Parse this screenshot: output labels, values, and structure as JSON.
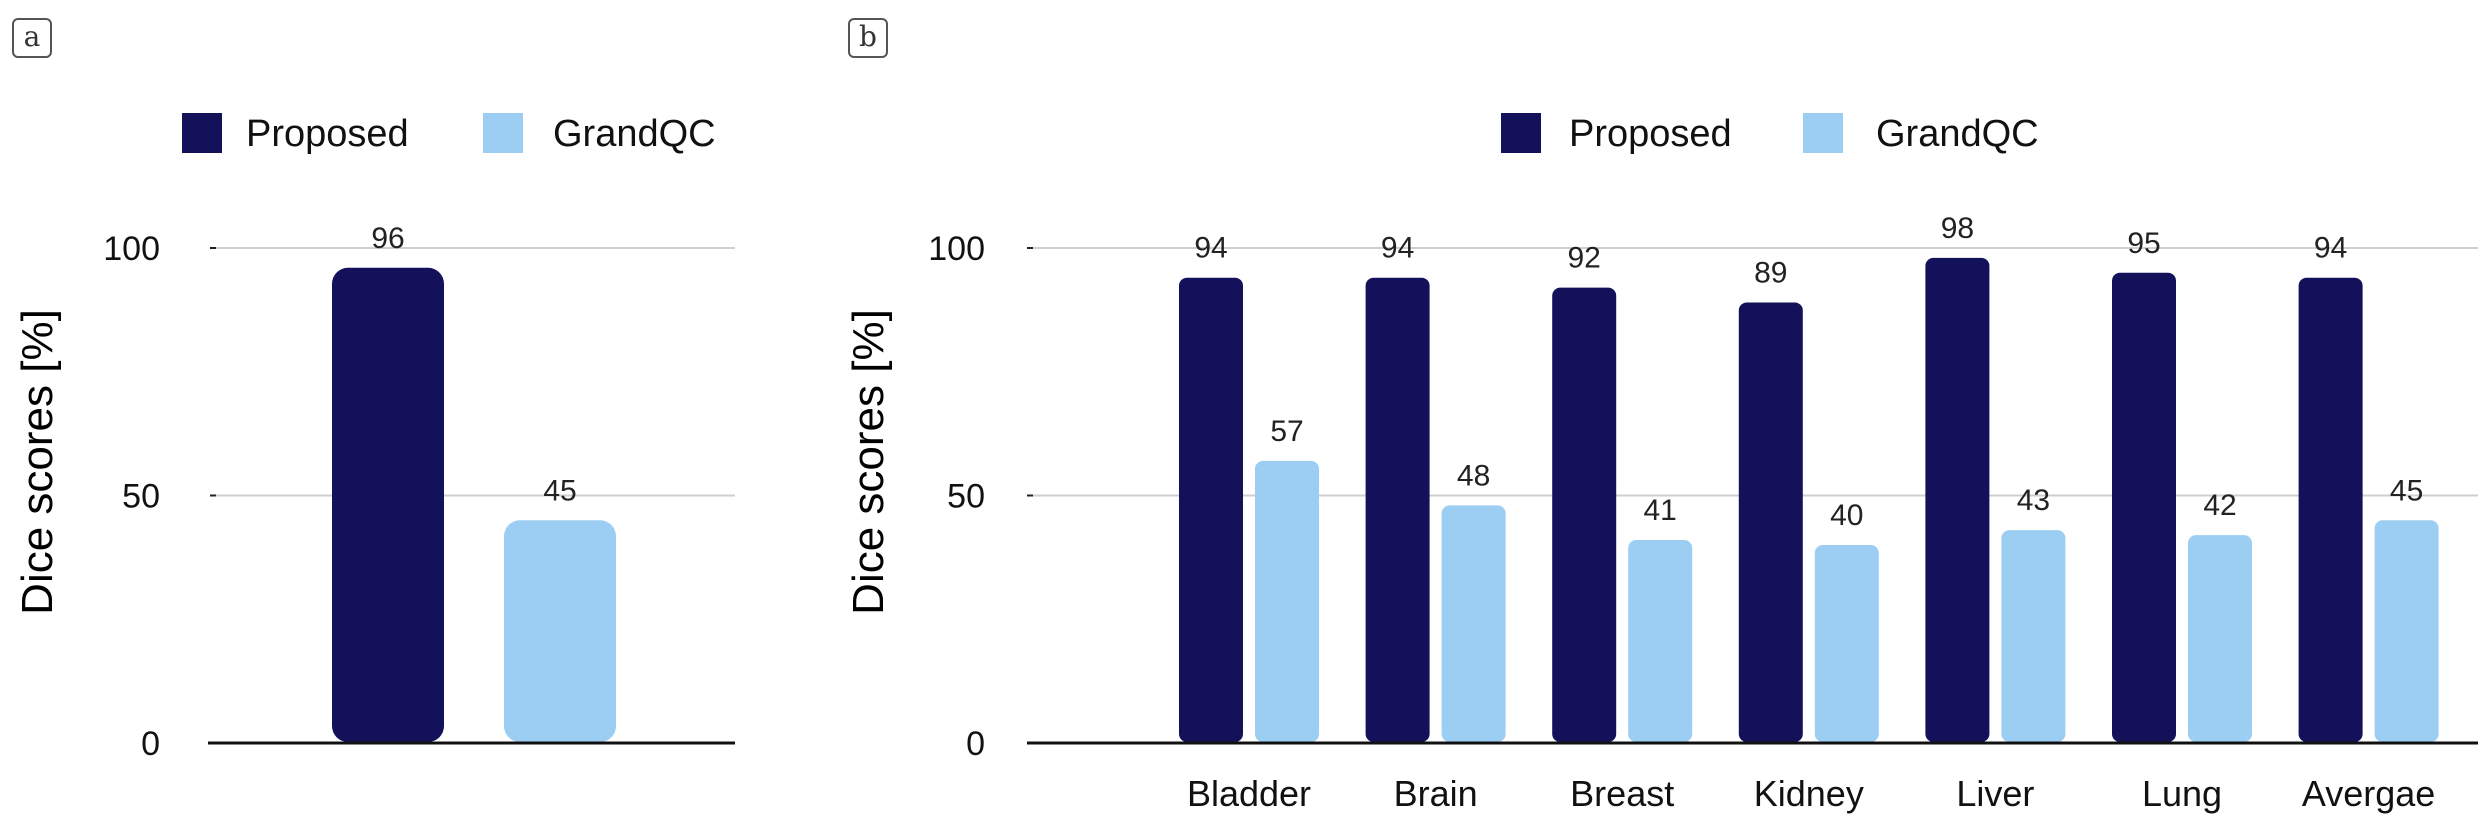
{
  "panels": [
    {
      "tag": "a"
    },
    {
      "tag": "b"
    }
  ],
  "colors": {
    "proposed": "#12115a",
    "grandqc": "#9ccdf2"
  },
  "chart_data": [
    {
      "type": "bar",
      "panel": "a",
      "categories": [
        ""
      ],
      "series": [
        {
          "name": "Proposed",
          "values": [
            96
          ]
        },
        {
          "name": "GrandQC",
          "values": [
            45
          ]
        }
      ],
      "xlabel": "",
      "ylabel": "Dice scores [%]",
      "ylim": [
        0,
        100
      ],
      "yticks": [
        0,
        50,
        100
      ],
      "grid": true,
      "legend": "top"
    },
    {
      "type": "bar",
      "panel": "b",
      "categories": [
        "Bladder",
        "Brain",
        "Breast",
        "Kidney",
        "Liver",
        "Lung",
        "Avergae"
      ],
      "series": [
        {
          "name": "Proposed",
          "values": [
            94,
            94,
            92,
            89,
            98,
            95,
            94
          ]
        },
        {
          "name": "GrandQC",
          "values": [
            57,
            48,
            41,
            40,
            43,
            42,
            45
          ]
        }
      ],
      "xlabel": "",
      "ylabel": "Dice scores [%]",
      "ylim": [
        0,
        100
      ],
      "yticks": [
        0,
        50,
        100
      ],
      "grid": true,
      "legend": "top"
    }
  ]
}
